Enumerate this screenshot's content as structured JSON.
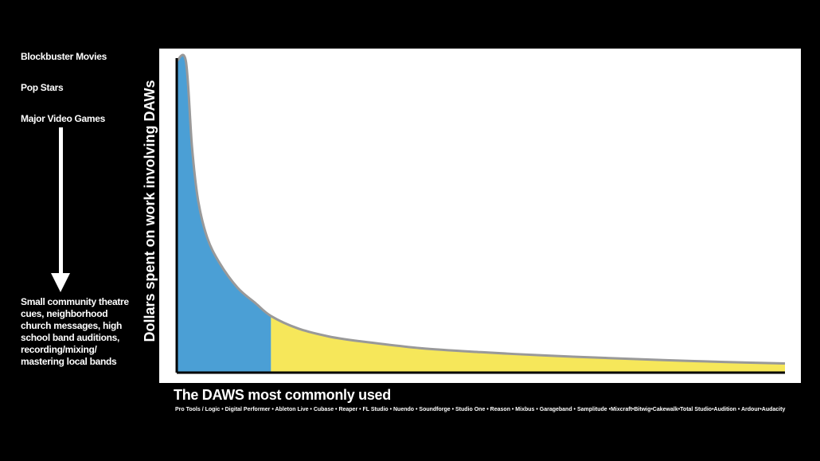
{
  "left_labels": {
    "top_1": "Blockbuster Movies",
    "top_2": "Pop Stars",
    "top_3": "Major Video Games",
    "bottom": "Small community theatre cues, neighborhood church messages, high school band auditions, recording/mixing/ mastering local bands"
  },
  "colors": {
    "background": "#000000",
    "head_fill": "#4b9fd5",
    "tail_fill": "#f6e75a",
    "curve_stroke": "#999999",
    "axis": "#000000",
    "text": "#ffffff"
  },
  "chart_data": {
    "type": "area",
    "title": "",
    "xlabel": "The DAWS most commonly used",
    "ylabel": "Dollars spent on work involving DAWs",
    "x_tick_text": "Pro Tools   /   Logic  •  Digital Performer  •  Ableton Live  •  Cubase  •  Reaper • FL Studio • Nuendo • Soundforge • Studio One • Reason • Mixbus • Garageband • Samplitude •Mixcraft•Bitwig•Cakewalk•Total Studio•Audition • Ardour•Audacity",
    "xlim": [
      0,
      1
    ],
    "ylim": [
      0,
      1
    ],
    "grid": false,
    "curve_description": "long-tail power-law decay",
    "x": [
      0.0,
      0.015,
      0.025,
      0.035,
      0.05,
      0.07,
      0.1,
      0.13,
      0.155,
      0.2,
      0.25,
      0.3,
      0.4,
      0.5,
      0.6,
      0.7,
      0.8,
      0.9,
      1.0
    ],
    "y": [
      0.99,
      0.99,
      0.72,
      0.55,
      0.43,
      0.35,
      0.27,
      0.22,
      0.18,
      0.14,
      0.115,
      0.1,
      0.078,
      0.065,
      0.055,
      0.047,
      0.04,
      0.034,
      0.029
    ],
    "highlight_split_x": 0.155,
    "regions": [
      {
        "name": "head",
        "x_range": [
          0,
          0.155
        ],
        "color": "#4b9fd5"
      },
      {
        "name": "tail",
        "x_range": [
          0.155,
          1.0
        ],
        "color": "#f6e75a"
      }
    ]
  }
}
